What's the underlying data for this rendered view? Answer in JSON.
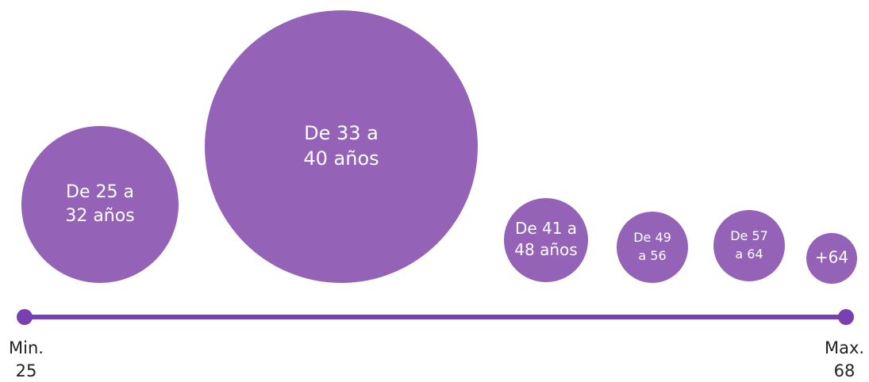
{
  "bubbles": [
    {
      "lines": [
        "De 25 a",
        "32 años"
      ]
    },
    {
      "lines": [
        "De 33 a",
        "40 años"
      ]
    },
    {
      "lines": [
        "De 41 a",
        "48 años"
      ]
    },
    {
      "lines": [
        "De 49",
        "a 56"
      ]
    },
    {
      "lines": [
        "De 57",
        "a 64"
      ]
    },
    {
      "lines": [
        "+64"
      ]
    }
  ],
  "axis": {
    "min": {
      "label": "Min.",
      "value": "25"
    },
    "max": {
      "label": "Max.",
      "value": "68"
    }
  }
}
